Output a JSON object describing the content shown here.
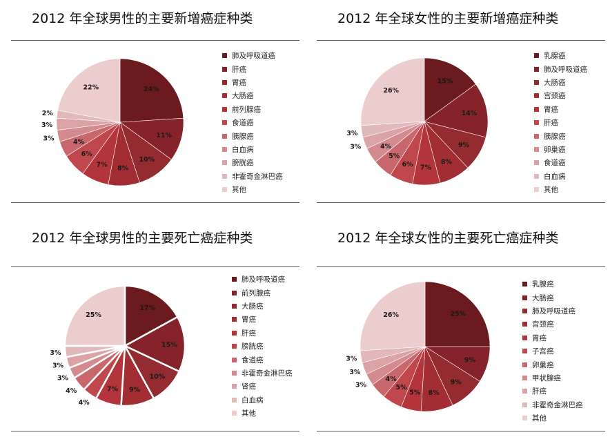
{
  "chart_data": [
    {
      "type": "pie",
      "title": "2012 年全球男性的主要新增癌症种类",
      "categories": [
        "肺及呼吸道癌",
        "肝癌",
        "胃癌",
        "大肠癌",
        "前列腺癌",
        "食道癌",
        "胰腺癌",
        "白血病",
        "膀胱癌",
        "非霍奇金淋巴癌",
        "其他"
      ],
      "slices": [
        {
          "label": "肺及呼吸道癌",
          "pct_text": "24%",
          "value": 24
        },
        {
          "label": "肝癌",
          "pct_text": "11%",
          "value": 11
        },
        {
          "label": "胃癌",
          "pct_text": "10%",
          "value": 10
        },
        {
          "label": "大肠癌",
          "pct_text": "8%",
          "value": 8
        },
        {
          "label": "前列腺癌",
          "pct_text": "7%",
          "value": 7
        },
        {
          "label": "食道癌",
          "pct_text": "6%",
          "value": 6
        },
        {
          "label": "胰腺癌",
          "pct_text": "4%",
          "value": 4
        },
        {
          "label": "白血病",
          "pct_text": "3%",
          "value": 3
        },
        {
          "label": "膀胱癌",
          "pct_text": "3%",
          "value": 3
        },
        {
          "label": "非霍奇金淋巴癌",
          "pct_text": "2%",
          "value": 2
        },
        {
          "label": "其他",
          "pct_text": "22%",
          "value": 22
        }
      ],
      "legend_position": "right"
    },
    {
      "type": "pie",
      "title": "2012 年全球女性的主要新增癌症种类",
      "categories": [
        "乳腺癌",
        "肺及呼吸道癌",
        "大肠癌",
        "宫颈癌",
        "胃癌",
        "肝癌",
        "胰腺癌",
        "卵巢癌",
        "食道癌",
        "白血病",
        "其他"
      ],
      "slices": [
        {
          "label": "乳腺癌",
          "pct_text": "15%",
          "value": 15
        },
        {
          "label": "肺及呼吸道癌",
          "pct_text": "14%",
          "value": 14
        },
        {
          "label": "大肠癌",
          "pct_text": "9%",
          "value": 9
        },
        {
          "label": "宫颈癌",
          "pct_text": "8%",
          "value": 8
        },
        {
          "label": "胃癌",
          "pct_text": "7%",
          "value": 7
        },
        {
          "label": "肝癌",
          "pct_text": "6%",
          "value": 6
        },
        {
          "label": "胰腺癌",
          "pct_text": "5%",
          "value": 5
        },
        {
          "label": "卵巢癌",
          "pct_text": "4%",
          "value": 4
        },
        {
          "label": "食道癌",
          "pct_text": "3%",
          "value": 3
        },
        {
          "label": "白血病",
          "pct_text": "3%",
          "value": 3
        },
        {
          "label": "其他",
          "pct_text": "26%",
          "value": 26
        }
      ],
      "legend_position": "right"
    },
    {
      "type": "pie",
      "title": "2012 年全球男性的主要死亡癌症种类",
      "categories": [
        "肺及呼吸道癌",
        "前列腺癌",
        "大肠癌",
        "胃癌",
        "肝癌",
        "膀胱癌",
        "食道癌",
        "非霍奇金淋巴癌",
        "肾癌",
        "白血病",
        "其他"
      ],
      "slices": [
        {
          "label": "肺及呼吸道癌",
          "pct_text": "17%",
          "value": 17
        },
        {
          "label": "前列腺癌",
          "pct_text": "15%",
          "value": 15
        },
        {
          "label": "大肠癌",
          "pct_text": "10%",
          "value": 10
        },
        {
          "label": "胃癌",
          "pct_text": "9%",
          "value": 9
        },
        {
          "label": "肝癌",
          "pct_text": "7%",
          "value": 7
        },
        {
          "label": "膀胱癌",
          "pct_text": "4%",
          "value": 4
        },
        {
          "label": "食道癌",
          "pct_text": "4%",
          "value": 4
        },
        {
          "label": "非霍奇金淋巴癌",
          "pct_text": "3%",
          "value": 3
        },
        {
          "label": "肾癌",
          "pct_text": "3%",
          "value": 3
        },
        {
          "label": "白血病",
          "pct_text": "3%",
          "value": 3
        },
        {
          "label": "其他",
          "pct_text": "25%",
          "value": 25
        }
      ],
      "legend_position": "right"
    },
    {
      "type": "pie",
      "title": "2012 年全球女性的主要死亡癌症种类",
      "categories": [
        "乳腺癌",
        "大肠癌",
        "肺及呼吸道癌",
        "宫颈癌",
        "胃癌",
        "子宫癌",
        "卵巢癌",
        "甲状腺癌",
        "肝癌",
        "非霍奇金淋巴癌",
        "其他"
      ],
      "slices": [
        {
          "label": "乳腺癌",
          "pct_text": "25%",
          "value": 25
        },
        {
          "label": "大肠癌",
          "pct_text": "9%",
          "value": 9
        },
        {
          "label": "肺及呼吸道癌",
          "pct_text": "9%",
          "value": 9
        },
        {
          "label": "宫颈癌",
          "pct_text": "8%",
          "value": 8
        },
        {
          "label": "胃癌",
          "pct_text": "5%",
          "value": 5
        },
        {
          "label": "子宫癌",
          "pct_text": "5%",
          "value": 5
        },
        {
          "label": "卵巢癌",
          "pct_text": "4%",
          "value": 4
        },
        {
          "label": "甲状腺癌",
          "pct_text": "3%",
          "value": 3
        },
        {
          "label": "肝癌",
          "pct_text": "3%",
          "value": 3
        },
        {
          "label": "非霍奇金淋巴癌",
          "pct_text": "3%",
          "value": 3
        },
        {
          "label": "其他",
          "pct_text": "26%",
          "value": 26
        }
      ],
      "legend_position": "right"
    }
  ],
  "colors": [
    "#6b1a1d",
    "#86232a",
    "#932b30",
    "#a22d33",
    "#b3353b",
    "#c0474c",
    "#c8686d",
    "#d48b8f",
    "#dca3a6",
    "#e2b9bb",
    "#ebcdce"
  ]
}
